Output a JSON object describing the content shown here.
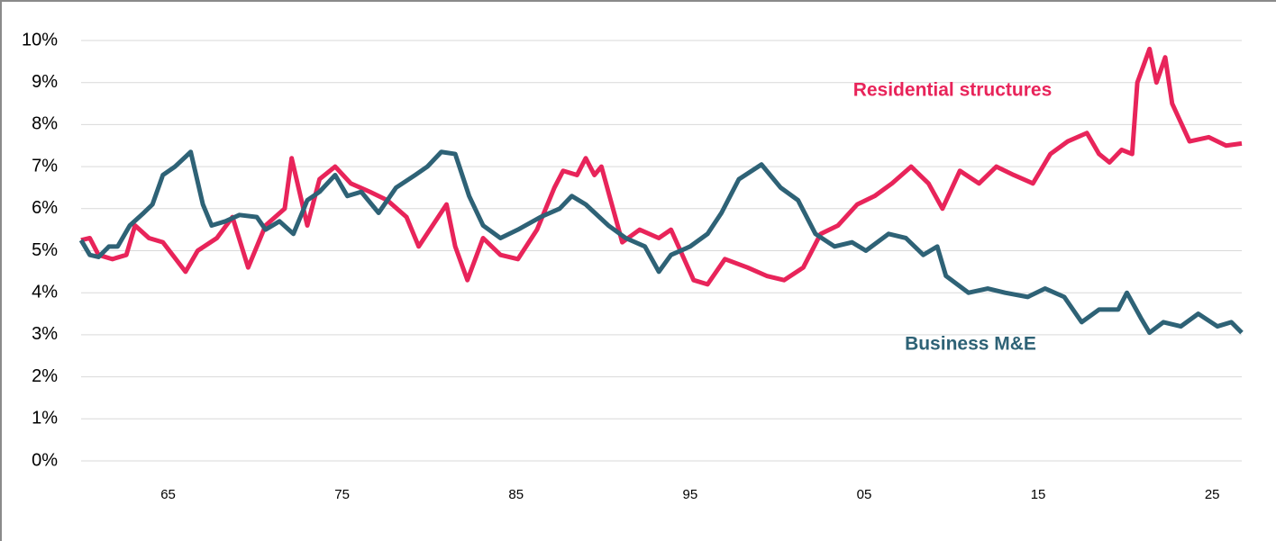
{
  "chart_data": {
    "type": "line",
    "xlim": [
      1960,
      2026.7
    ],
    "xticks": [
      {
        "value": 1965,
        "label": "65"
      },
      {
        "value": 1975,
        "label": "75"
      },
      {
        "value": 1985,
        "label": "85"
      },
      {
        "value": 1995,
        "label": "95"
      },
      {
        "value": 2005,
        "label": "05"
      },
      {
        "value": 2015,
        "label": "15"
      },
      {
        "value": 2025,
        "label": "25"
      }
    ],
    "ylim": [
      0,
      10
    ],
    "yticks": [
      {
        "value": 0,
        "label": "0%"
      },
      {
        "value": 1,
        "label": "1%"
      },
      {
        "value": 2,
        "label": "2%"
      },
      {
        "value": 3,
        "label": "3%"
      },
      {
        "value": 4,
        "label": "4%"
      },
      {
        "value": 5,
        "label": "5%"
      },
      {
        "value": 6,
        "label": "6%"
      },
      {
        "value": 7,
        "label": "7%"
      },
      {
        "value": 8,
        "label": "8%"
      },
      {
        "value": 9,
        "label": "9%"
      },
      {
        "value": 10,
        "label": "10%"
      }
    ],
    "grid": true,
    "series": [
      {
        "name": "Residential structures",
        "color": "#e8245a",
        "x": [
          1960,
          1960.5,
          1961,
          1961.8,
          1962.6,
          1963.1,
          1963.9,
          1964.7,
          1966,
          1966.7,
          1967.8,
          1968.7,
          1969.6,
          1970.6,
          1971.7,
          1972.1,
          1973,
          1973.7,
          1974.6,
          1975.5,
          1976.6,
          1977.6,
          1978.7,
          1979.4,
          1980.2,
          1981,
          1981.5,
          1982.2,
          1983.1,
          1984.1,
          1985.1,
          1986.2,
          1987.2,
          1987.7,
          1988.5,
          1989,
          1989.5,
          1989.9,
          1991.1,
          1992.1,
          1993.2,
          1993.9,
          1995.2,
          1996,
          1997,
          1998.3,
          1999.4,
          2000.4,
          2001.5,
          2002.5,
          2003.5,
          2004.6,
          2005.6,
          2006.6,
          2007.7,
          2008.7,
          2009.5,
          2010.5,
          2011.6,
          2012.6,
          2013.6,
          2014.7,
          2015.7,
          2016.7,
          2017.8,
          2018.5,
          2019.1,
          2019.8,
          2020.4,
          2020.7,
          2021.4,
          2021.8,
          2022.3,
          2022.7,
          2023.7,
          2024.8,
          2025.8,
          2026.7
        ],
        "values": [
          5.25,
          5.3,
          4.9,
          4.8,
          4.9,
          5.6,
          5.3,
          5.2,
          4.5,
          5.0,
          5.3,
          5.8,
          4.6,
          5.6,
          6.0,
          7.2,
          5.6,
          6.7,
          7.0,
          6.6,
          6.4,
          6.2,
          5.8,
          5.1,
          5.6,
          6.1,
          5.1,
          4.3,
          5.3,
          4.9,
          4.8,
          5.5,
          6.5,
          6.9,
          6.8,
          7.2,
          6.8,
          7.0,
          5.2,
          5.5,
          5.3,
          5.5,
          4.3,
          4.2,
          4.8,
          4.6,
          4.4,
          4.3,
          4.6,
          5.4,
          5.6,
          6.1,
          6.3,
          6.6,
          7.0,
          6.6,
          6.0,
          6.9,
          6.6,
          7.0,
          6.8,
          6.6,
          7.3,
          7.6,
          7.8,
          7.3,
          7.1,
          7.4,
          7.3,
          9.0,
          9.8,
          9.0,
          9.6,
          8.5,
          7.6,
          7.7,
          7.5,
          7.55
        ]
      },
      {
        "name": "Business M&E",
        "color": "#2e6276",
        "x": [
          1960,
          1960.5,
          1961,
          1961.6,
          1962.1,
          1962.8,
          1963.6,
          1964.1,
          1964.7,
          1965.4,
          1966.3,
          1967,
          1967.5,
          1968.3,
          1969.1,
          1970.1,
          1970.6,
          1971.4,
          1972.2,
          1973,
          1973.7,
          1974.6,
          1975.3,
          1976.1,
          1977.1,
          1978.1,
          1979.2,
          1979.9,
          1980.7,
          1981.5,
          1982.3,
          1983.1,
          1984.1,
          1985.1,
          1986.4,
          1987.5,
          1988.2,
          1989,
          1990.3,
          1991.3,
          1992.4,
          1993.2,
          1993.9,
          1995,
          1996,
          1996.8,
          1997.8,
          1999.1,
          2000.2,
          2001.2,
          2002.2,
          2003.3,
          2004.3,
          2005.1,
          2006.4,
          2007.4,
          2008.4,
          2009.2,
          2009.7,
          2011,
          2012.1,
          2013.1,
          2014.4,
          2015.4,
          2016.5,
          2017.5,
          2018.5,
          2019.6,
          2020.1,
          2020.9,
          2021.4,
          2022.2,
          2023.2,
          2024.2,
          2025.3,
          2026.1,
          2026.7
        ],
        "values": [
          5.25,
          4.9,
          4.85,
          5.1,
          5.1,
          5.6,
          5.9,
          6.1,
          6.8,
          7.0,
          7.35,
          6.1,
          5.6,
          5.7,
          5.85,
          5.8,
          5.5,
          5.7,
          5.4,
          6.2,
          6.4,
          6.8,
          6.3,
          6.4,
          5.9,
          6.5,
          6.8,
          7.0,
          7.35,
          7.3,
          6.3,
          5.6,
          5.3,
          5.5,
          5.8,
          6.0,
          6.3,
          6.1,
          5.6,
          5.3,
          5.1,
          4.5,
          4.9,
          5.1,
          5.4,
          5.9,
          6.7,
          7.05,
          6.5,
          6.2,
          5.4,
          5.1,
          5.2,
          5.0,
          5.4,
          5.3,
          4.9,
          5.1,
          4.4,
          4.0,
          4.1,
          4.0,
          3.9,
          4.1,
          3.9,
          3.3,
          3.6,
          3.6,
          4.0,
          3.4,
          3.05,
          3.3,
          3.2,
          3.5,
          3.2,
          3.3,
          3.05
        ]
      }
    ]
  }
}
